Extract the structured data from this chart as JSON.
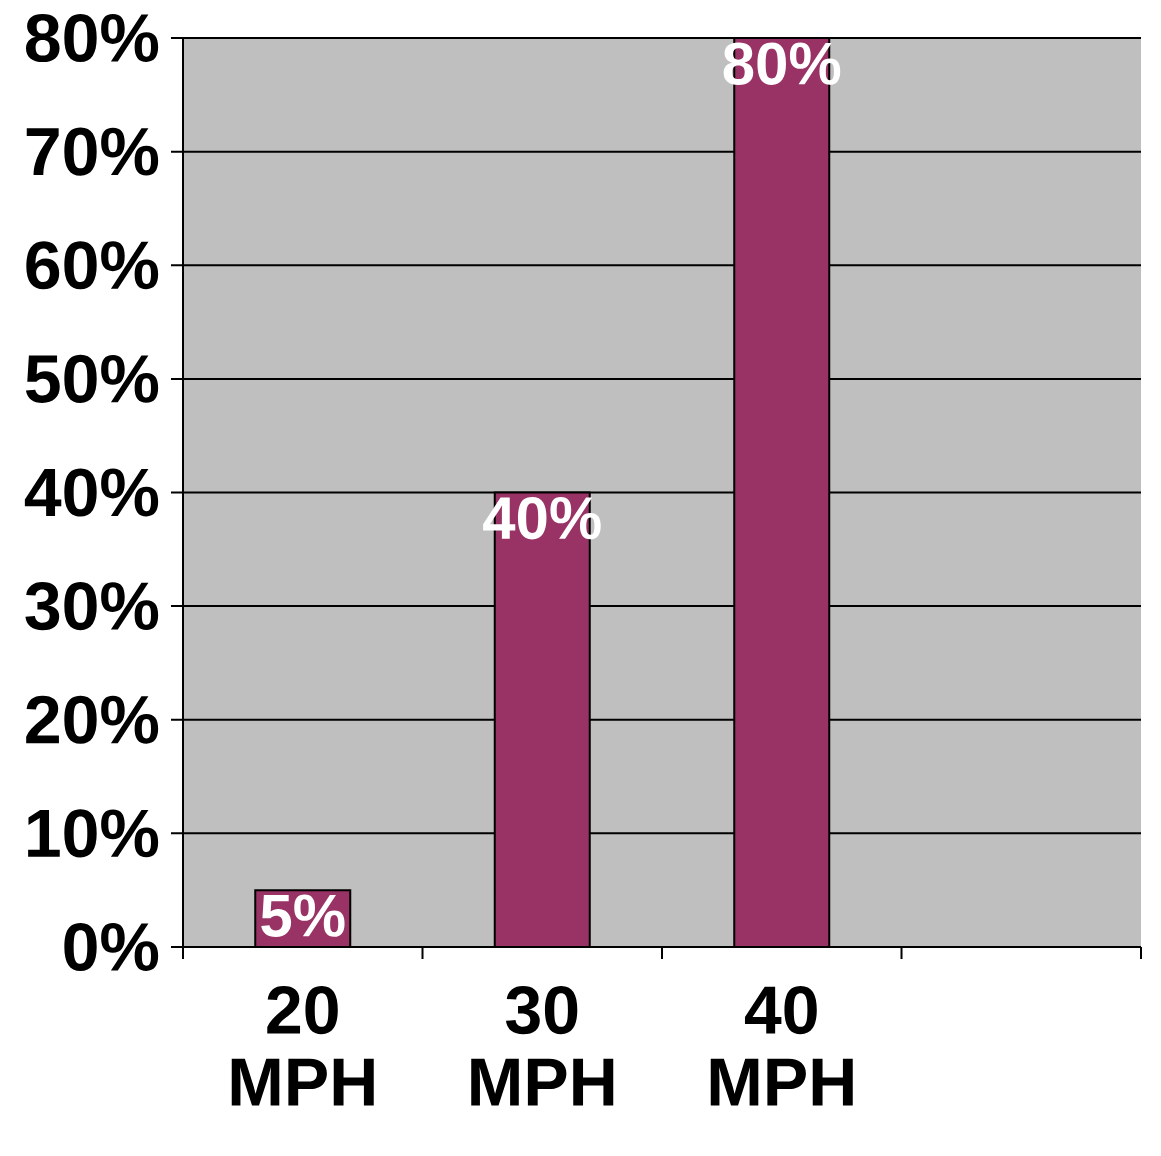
{
  "chart_data": {
    "type": "bar",
    "categories": [
      "20 MPH",
      "30 MPH",
      "40 MPH",
      null
    ],
    "values": [
      5,
      40,
      80,
      null
    ],
    "value_labels": [
      "5%",
      "40%",
      "80%",
      null
    ],
    "color": "#993366",
    "ylim": [
      0,
      80
    ],
    "yticks": [
      {
        "value": 0,
        "label": "0%"
      },
      {
        "value": 10,
        "label": "10%"
      },
      {
        "value": 20,
        "label": "20%"
      },
      {
        "value": 30,
        "label": "30%"
      },
      {
        "value": 40,
        "label": "40%"
      },
      {
        "value": 50,
        "label": "50%"
      },
      {
        "value": 60,
        "label": "60%"
      },
      {
        "value": 70,
        "label": "70%"
      },
      {
        "value": 80,
        "label": "80%"
      }
    ],
    "grid": "y"
  }
}
